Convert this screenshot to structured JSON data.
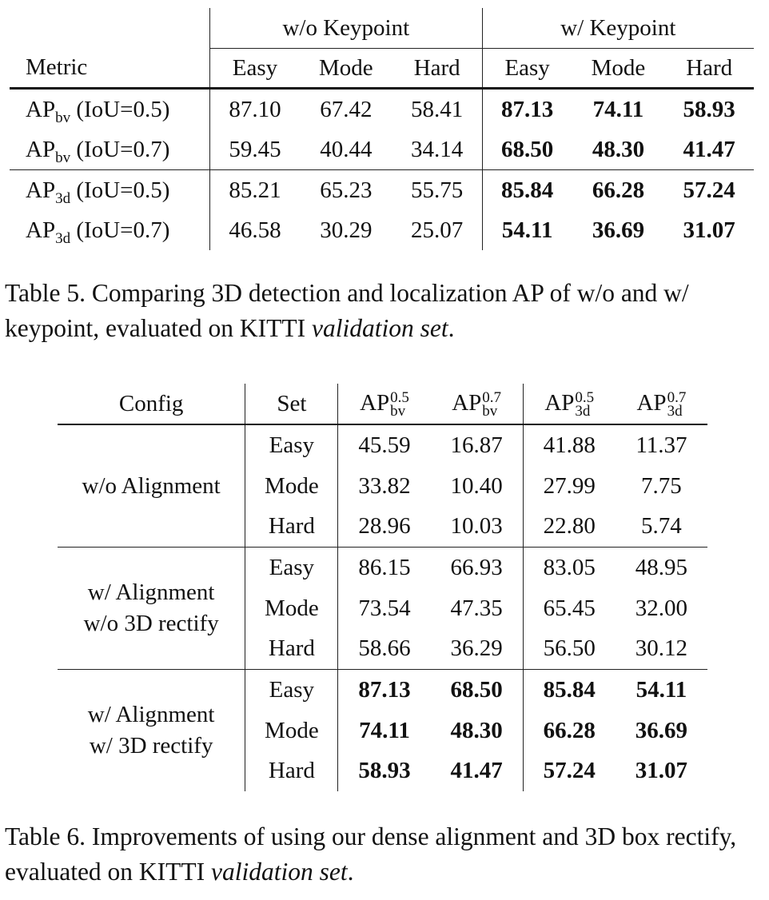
{
  "table5": {
    "group_headers": [
      "w/o Keypoint",
      "w/ Keypoint"
    ],
    "metric_header": "Metric",
    "sub_headers": [
      "Easy",
      "Mode",
      "Hard",
      "Easy",
      "Mode",
      "Hard"
    ],
    "rows": [
      {
        "ap": "AP",
        "sub": "bv",
        "iou": "(IoU=0.5)",
        "values": [
          "87.10",
          "67.42",
          "58.41",
          "87.13",
          "74.11",
          "58.93"
        ]
      },
      {
        "ap": "AP",
        "sub": "bv",
        "iou": "(IoU=0.7)",
        "values": [
          "59.45",
          "40.44",
          "34.14",
          "68.50",
          "48.30",
          "41.47"
        ]
      },
      {
        "ap": "AP",
        "sub": "3d",
        "iou": "(IoU=0.5)",
        "values": [
          "85.21",
          "65.23",
          "55.75",
          "85.84",
          "66.28",
          "57.24"
        ]
      },
      {
        "ap": "AP",
        "sub": "3d",
        "iou": "(IoU=0.7)",
        "values": [
          "46.58",
          "30.29",
          "25.07",
          "54.11",
          "36.69",
          "31.07"
        ]
      }
    ],
    "caption": {
      "text": "Table 5. Comparing 3D detection and localization AP of w/o and w/ keypoint, evaluated on KITTI ",
      "italic": "validation set",
      "end": "."
    }
  },
  "table6": {
    "header": {
      "config": "Config",
      "set": "Set",
      "cols": [
        {
          "base": "AP",
          "sup": "0.5",
          "sub": "bv"
        },
        {
          "base": "AP",
          "sup": "0.7",
          "sub": "bv"
        },
        {
          "base": "AP",
          "sup": "0.5",
          "sub": "3d"
        },
        {
          "base": "AP",
          "sup": "0.7",
          "sub": "3d"
        }
      ]
    },
    "groups": [
      {
        "config_lines": [
          "w/o Alignment"
        ],
        "rows": [
          {
            "set": "Easy",
            "values": [
              "45.59",
              "16.87",
              "41.88",
              "11.37"
            ]
          },
          {
            "set": "Mode",
            "values": [
              "33.82",
              "10.40",
              "27.99",
              "7.75"
            ]
          },
          {
            "set": "Hard",
            "values": [
              "28.96",
              "10.03",
              "22.80",
              "5.74"
            ]
          }
        ]
      },
      {
        "config_lines": [
          "w/ Alignment",
          "w/o 3D rectify"
        ],
        "rows": [
          {
            "set": "Easy",
            "values": [
              "86.15",
              "66.93",
              "83.05",
              "48.95"
            ]
          },
          {
            "set": "Mode",
            "values": [
              "73.54",
              "47.35",
              "65.45",
              "32.00"
            ]
          },
          {
            "set": "Hard",
            "values": [
              "58.66",
              "36.29",
              "56.50",
              "30.12"
            ]
          }
        ]
      },
      {
        "config_lines": [
          "w/ Alignment",
          "w/ 3D rectify"
        ],
        "rows": [
          {
            "set": "Easy",
            "values": [
              "87.13",
              "68.50",
              "85.84",
              "54.11"
            ]
          },
          {
            "set": "Mode",
            "values": [
              "74.11",
              "48.30",
              "66.28",
              "36.69"
            ]
          },
          {
            "set": "Hard",
            "values": [
              "58.93",
              "41.47",
              "57.24",
              "31.07"
            ]
          }
        ]
      }
    ],
    "caption": {
      "text": "Table 6. Improvements of using our dense alignment and 3D box rectify, evaluated on KITTI ",
      "italic": "validation set",
      "end": "."
    }
  }
}
